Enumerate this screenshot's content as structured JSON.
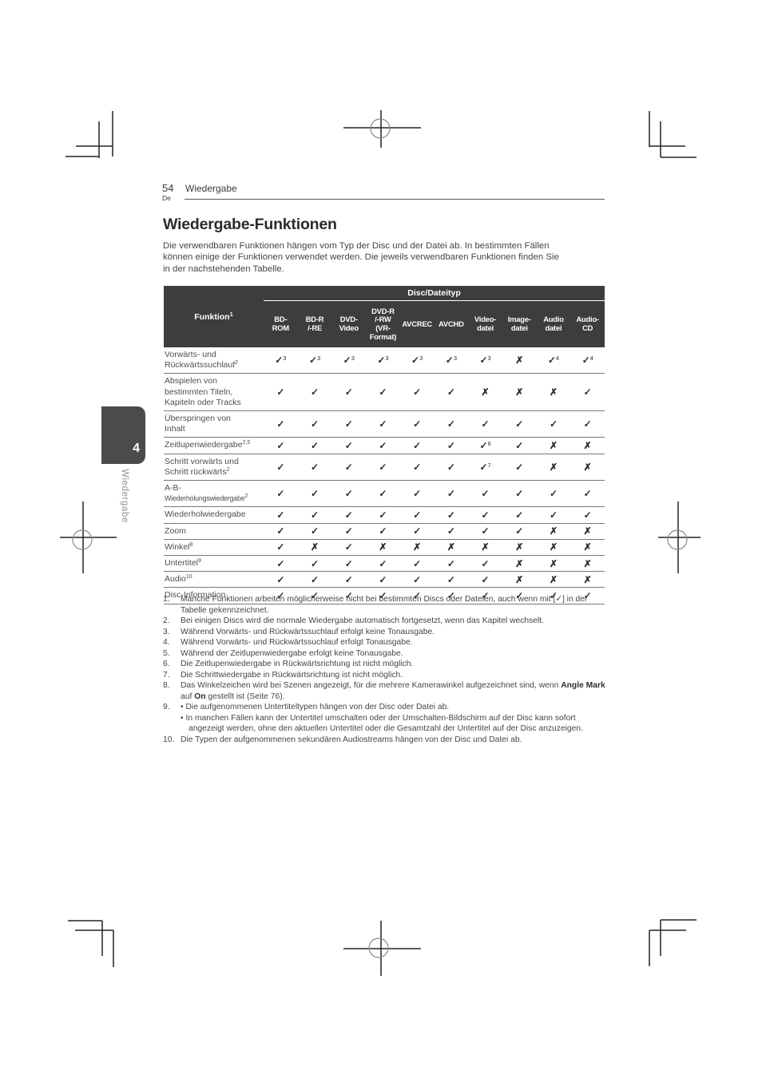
{
  "colors": {
    "table_header_bg": "#3d3d3d",
    "table_header_text": "#ffffff",
    "chapter_tab_bg": "#4b4b4b",
    "mark_color": "#2b2b2b",
    "body_text": "#454545"
  },
  "page_header": {
    "page_number": "54",
    "lang": "De",
    "section": "Wiedergabe"
  },
  "chapter_tab": {
    "number": "4",
    "label": "Wiedergabe"
  },
  "article": {
    "title": "Wiedergabe-Funktionen",
    "intro_lines": [
      "Die verwendbaren Funktionen hängen vom Typ der Disc und der Datei ab. In bestimmten Fällen",
      "können einige der Funktionen verwendet werden. Die jeweils verwendbaren Funktionen finden Sie",
      "in der nachstehenden Tabelle."
    ]
  },
  "table": {
    "group_header": "Disc/Dateityp",
    "function_column": {
      "label": "Funktion",
      "sup": "1"
    },
    "marks_legend": {
      "check": "✓",
      "cross": "✗"
    },
    "disc_columns": [
      {
        "lines": [
          "BD-",
          "ROM"
        ]
      },
      {
        "lines": [
          "BD-R",
          "/-RE"
        ]
      },
      {
        "lines": [
          "DVD-",
          "Video"
        ]
      },
      {
        "lines": [
          "DVD-R",
          "/-RW",
          "(VR-",
          "Format)"
        ]
      },
      {
        "lines": [
          "AVCREC"
        ]
      },
      {
        "lines": [
          "AVCHD"
        ]
      },
      {
        "lines": [
          "Video-",
          "datei"
        ]
      },
      {
        "lines": [
          "Image-",
          "datei"
        ]
      },
      {
        "lines": [
          "Audio",
          "datei"
        ]
      },
      {
        "lines": [
          "Audio-",
          "CD"
        ]
      }
    ],
    "rows": [
      {
        "label_lines": [
          "Vorwärts- und",
          "Rückwärtssuchlauf"
        ],
        "label_sup": "2",
        "cells": [
          "✓3",
          "✓3",
          "✓3",
          "✓3",
          "✓3",
          "✓3",
          "✓3",
          "✗",
          "✓4",
          "✓4"
        ]
      },
      {
        "label_lines": [
          "Abspielen von",
          "bestimmten Titeln,",
          "Kapiteln oder Tracks"
        ],
        "label_sup": "",
        "cells": [
          "✓",
          "✓",
          "✓",
          "✓",
          "✓",
          "✓",
          "✗",
          "✗",
          "✗",
          "✓"
        ]
      },
      {
        "label_lines": [
          "Überspringen von",
          "Inhalt"
        ],
        "label_sup": "",
        "cells": [
          "✓",
          "✓",
          "✓",
          "✓",
          "✓",
          "✓",
          "✓",
          "✓",
          "✓",
          "✓"
        ]
      },
      {
        "label_lines": [
          "Zeitlupenwiedergabe"
        ],
        "label_sup": "2,5",
        "cells": [
          "✓",
          "✓",
          "✓",
          "✓",
          "✓",
          "✓",
          "✓6",
          "✓",
          "✗",
          "✗"
        ]
      },
      {
        "label_lines": [
          "Schritt vorwärts und",
          "Schritt rückwärts"
        ],
        "label_sup": "2",
        "cells": [
          "✓",
          "✓",
          "✓",
          "✓",
          "✓",
          "✓",
          "✓7",
          "✓",
          "✗",
          "✗"
        ]
      },
      {
        "label_lines": [
          "A-B-",
          "Wiederholungswiedergabe"
        ],
        "label_sup": "2",
        "cells": [
          "✓",
          "✓",
          "✓",
          "✓",
          "✓",
          "✓",
          "✓",
          "✓",
          "✓",
          "✓"
        ]
      },
      {
        "label_lines": [
          "Wiederholwiedergabe"
        ],
        "label_sup": "",
        "cells": [
          "✓",
          "✓",
          "✓",
          "✓",
          "✓",
          "✓",
          "✓",
          "✓",
          "✓",
          "✓"
        ]
      },
      {
        "label_lines": [
          "Zoom"
        ],
        "label_sup": "",
        "cells": [
          "✓",
          "✓",
          "✓",
          "✓",
          "✓",
          "✓",
          "✓",
          "✓",
          "✗",
          "✗"
        ]
      },
      {
        "label_lines": [
          "Winkel"
        ],
        "label_sup": "8",
        "cells": [
          "✓",
          "✗",
          "✓",
          "✗",
          "✗",
          "✗",
          "✗",
          "✗",
          "✗",
          "✗"
        ]
      },
      {
        "label_lines": [
          "Untertitel"
        ],
        "label_sup": "9",
        "cells": [
          "✓",
          "✓",
          "✓",
          "✓",
          "✓",
          "✓",
          "✓",
          "✗",
          "✗",
          "✗"
        ]
      },
      {
        "label_lines": [
          "Audio"
        ],
        "label_sup": "10",
        "cells": [
          "✓",
          "✓",
          "✓",
          "✓",
          "✓",
          "✓",
          "✓",
          "✗",
          "✗",
          "✗"
        ]
      },
      {
        "label_lines": [
          "Disc-Information"
        ],
        "label_sup": "",
        "cells": [
          "✓",
          "✓",
          "✓",
          "✓",
          "✓",
          "✓",
          "✓",
          "✓",
          "✓",
          "✓"
        ]
      }
    ]
  },
  "footnotes": [
    {
      "num": "1.",
      "paragraphs": [
        "Manche Funktionen arbeiten möglicherweise nicht bei bestimmten Discs oder Dateien, auch wenn mit [✓] in der Tabelle gekennzeichnet."
      ]
    },
    {
      "num": "2.",
      "paragraphs": [
        "Bei einigen Discs wird die normale Wiedergabe automatisch fortgesetzt, wenn das Kapitel wechselt."
      ]
    },
    {
      "num": "3.",
      "paragraphs": [
        "Während Vorwärts- und Rückwärtssuchlauf erfolgt keine Tonausgabe."
      ]
    },
    {
      "num": "4.",
      "paragraphs": [
        "Während Vorwärts- und Rückwärtssuchlauf erfolgt Tonausgabe."
      ]
    },
    {
      "num": "5.",
      "paragraphs": [
        "Während der Zeitlupenwiedergabe erfolgt keine Tonausgabe."
      ]
    },
    {
      "num": "6.",
      "paragraphs": [
        "Die Zeitlupenwiedergabe in Rückwärtsrichtung ist nicht möglich."
      ]
    },
    {
      "num": "7.",
      "paragraphs": [
        "Die Schrittwiedergabe in Rückwärtsrichtung ist nicht möglich."
      ]
    },
    {
      "num": "8.",
      "paragraphs": [
        "Das Winkelzeichen wird bei Szenen angezeigt, für die mehrere Kamerawinkel aufgezeichnet sind, wenn **Angle Mark** auf **On** gestellt ist (Seite 76)."
      ]
    },
    {
      "num": "9.",
      "paragraphs": [
        "• Die aufgenommenen Untertiteltypen hängen von der Disc oder Datei ab.",
        "• In manchen Fällen kann der Untertitel umschalten oder der Umschalten-Bildschirm auf der Disc kann sofort angezeigt werden, ohne den aktuellen Untertitel oder die Gesamtzahl der Untertitel auf der Disc anzuzeigen."
      ]
    },
    {
      "num": "10.",
      "paragraphs": [
        "Die Typen der aufgenommenen sekundären Audiostreams hängen von der Disc und Datei ab."
      ]
    }
  ]
}
